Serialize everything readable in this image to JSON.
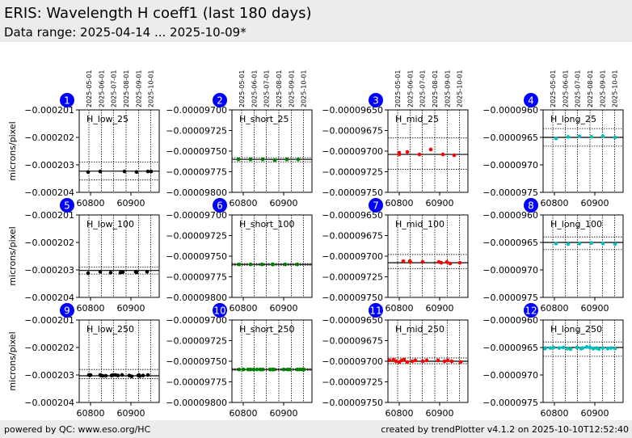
{
  "header": {
    "title": "ERIS: Wavelength H coeff1 (last 180 days)",
    "subtitle": "Data range: 2025-04-14 ... 2025-10-09*"
  },
  "footer": {
    "left": "powered by QC: www.eso.org/HC",
    "right": "created by trendPlotter v4.1.2 on 2025-10-10T12:52:40"
  },
  "chart_data": {
    "type": "scatter",
    "ylabel": "microns/pixel",
    "xlim": [
      60772,
      60970
    ],
    "xticks": [
      60800,
      60900
    ],
    "date_ticks": [
      {
        "label": "2025-05-01",
        "mjd": 60796
      },
      {
        "label": "2025-06-01",
        "mjd": 60827
      },
      {
        "label": "2025-07-01",
        "mjd": 60857
      },
      {
        "label": "2025-08-01",
        "mjd": 60888
      },
      {
        "label": "2025-09-01",
        "mjd": 60919
      },
      {
        "label": "2025-10-01",
        "mjd": 60949
      }
    ],
    "colors": {
      "low": "#000000",
      "short": "#008000",
      "mid": "#ff0000",
      "long": "#00bfbf",
      "badge": "#0000ff"
    },
    "panels": [
      {
        "num": "1",
        "label": "H_low_25",
        "color": "low",
        "ylim": [
          -0.000204,
          -0.000201
        ],
        "yticks": [
          -0.000201,
          -0.000202,
          -0.000203,
          -0.000204
        ],
        "yticklabels": [
          "−0.000201",
          "−0.000202",
          "−0.000203",
          "−0.000204"
        ],
        "mean": -0.00020323,
        "limits": [
          -0.0002029,
          -0.00020355
        ],
        "points": [
          [
            60794,
            -0.00020326
          ],
          [
            60824,
            -0.00020324
          ],
          [
            60884,
            -0.00020324
          ],
          [
            60914,
            -0.00020326
          ],
          [
            60942,
            -0.00020324
          ],
          [
            60950,
            -0.00020324
          ]
        ]
      },
      {
        "num": "2",
        "label": "H_short_25",
        "color": "short",
        "ylim": [
          -9.8e-05,
          -9.7e-05
        ],
        "yticks": [
          -9.7e-05,
          -9.725e-05,
          -9.75e-05,
          -9.775e-05,
          -9.8e-05
        ],
        "yticklabels": [
          "−0.00009700",
          "−0.00009725",
          "−0.00009750",
          "−0.00009775",
          "−0.00009800"
        ],
        "mean": -9.76e-05,
        "limits": [
          -9.758e-05,
          -9.763e-05
        ],
        "points": [
          [
            60788,
            -9.76e-05
          ],
          [
            60818,
            -9.76e-05
          ],
          [
            60848,
            -9.76e-05
          ],
          [
            60878,
            -9.761e-05
          ],
          [
            60908,
            -9.76e-05
          ],
          [
            60936,
            -9.76e-05
          ]
        ]
      },
      {
        "num": "3",
        "label": "H_mid_25",
        "color": "mid",
        "ylim": [
          -9.75e-05,
          -9.65e-05
        ],
        "yticks": [
          -9.65e-05,
          -9.675e-05,
          -9.7e-05,
          -9.725e-05,
          -9.75e-05
        ],
        "yticklabels": [
          "−0.00009650",
          "−0.00009675",
          "−0.00009700",
          "−0.00009725",
          "−0.00009750"
        ],
        "mean": -9.704e-05,
        "limits": [
          -9.684e-05,
          -9.722e-05
        ],
        "points": [
          [
            60800,
            -9.702e-05
          ],
          [
            60800,
            -9.704e-05
          ],
          [
            60820,
            -9.701e-05
          ],
          [
            60850,
            -9.704e-05
          ],
          [
            60878,
            -9.698e-05
          ],
          [
            60908,
            -9.704e-05
          ],
          [
            60936,
            -9.705e-05
          ]
        ]
      },
      {
        "num": "4",
        "label": "H_long_25",
        "color": "long",
        "ylim": [
          -9.75e-05,
          -9.6e-05
        ],
        "yticks": [
          -9.6e-05,
          -9.65e-05,
          -9.7e-05,
          -9.75e-05
        ],
        "yticklabels": [
          "−0.0000960",
          "−0.0000965",
          "−0.0000970",
          "−0.0000975"
        ],
        "mean": -9.65e-05,
        "limits": [
          -9.634e-05,
          -9.666e-05
        ],
        "points": [
          [
            60804,
            -9.652e-05
          ],
          [
            60834,
            -9.649e-05
          ],
          [
            60862,
            -9.648e-05
          ],
          [
            60892,
            -9.649e-05
          ],
          [
            60920,
            -9.648e-05
          ],
          [
            60950,
            -9.65e-05
          ]
        ]
      },
      {
        "num": "5",
        "label": "H_low_100",
        "color": "low",
        "ylim": [
          -0.000204,
          -0.000201
        ],
        "yticks": [
          -0.000201,
          -0.000202,
          -0.000203,
          -0.000204
        ],
        "yticklabels": [
          "−0.000201",
          "−0.000202",
          "−0.000203",
          "−0.000204"
        ],
        "mean": -0.00020302,
        "limits": [
          -0.0002029,
          -0.00020315
        ],
        "points": [
          [
            60794,
            -0.00020312
          ],
          [
            60824,
            -0.00020307
          ],
          [
            60850,
            -0.0002031
          ],
          [
            60874,
            -0.0002031
          ],
          [
            60880,
            -0.00020308
          ],
          [
            60912,
            -0.00020307
          ],
          [
            60914,
            -0.00020309
          ],
          [
            60940,
            -0.00020307
          ]
        ]
      },
      {
        "num": "6",
        "label": "H_short_100",
        "color": "short",
        "ylim": [
          -9.8e-05,
          -9.7e-05
        ],
        "yticks": [
          -9.7e-05,
          -9.725e-05,
          -9.75e-05,
          -9.775e-05,
          -9.8e-05
        ],
        "yticklabels": [
          "−0.00009700",
          "−0.00009725",
          "−0.00009750",
          "−0.00009775",
          "−0.00009800"
        ],
        "mean": -9.76e-05,
        "limits": [
          -9.759e-05,
          -9.761e-05
        ],
        "points": [
          [
            60790,
            -9.76e-05
          ],
          [
            60818,
            -9.76e-05
          ],
          [
            60846,
            -9.76e-05
          ],
          [
            60872,
            -9.76e-05
          ],
          [
            60874,
            -9.76e-05
          ],
          [
            60904,
            -9.76e-05
          ],
          [
            60934,
            -9.76e-05
          ]
        ]
      },
      {
        "num": "7",
        "label": "H_mid_100",
        "color": "mid",
        "ylim": [
          -9.75e-05,
          -9.65e-05
        ],
        "yticks": [
          -9.65e-05,
          -9.675e-05,
          -9.7e-05,
          -9.725e-05,
          -9.75e-05
        ],
        "yticklabels": [
          "−0.00009650",
          "−0.00009675",
          "−0.00009700",
          "−0.00009725",
          "−0.00009750"
        ],
        "mean": -9.708e-05,
        "limits": [
          -9.698e-05,
          -9.715e-05
        ],
        "points": [
          [
            60810,
            -9.706e-05
          ],
          [
            60826,
            -9.706e-05
          ],
          [
            60828,
            -9.707e-05
          ],
          [
            60858,
            -9.707e-05
          ],
          [
            60898,
            -9.707e-05
          ],
          [
            60904,
            -9.708e-05
          ],
          [
            60918,
            -9.707e-05
          ],
          [
            60926,
            -9.709e-05
          ],
          [
            60950,
            -9.708e-05
          ]
        ]
      },
      {
        "num": "8",
        "label": "H_long_100",
        "color": "long",
        "ylim": [
          -9.75e-05,
          -9.6e-05
        ],
        "yticks": [
          -9.6e-05,
          -9.65e-05,
          -9.7e-05,
          -9.75e-05
        ],
        "yticklabels": [
          "−0.0000960",
          "−0.0000965",
          "−0.0000970",
          "−0.0000975"
        ],
        "mean": -9.65e-05,
        "limits": [
          -9.64e-05,
          -9.663e-05
        ],
        "points": [
          [
            60804,
            -9.652e-05
          ],
          [
            60834,
            -9.653e-05
          ],
          [
            60862,
            -9.652e-05
          ],
          [
            60892,
            -9.651e-05
          ],
          [
            60920,
            -9.652e-05
          ],
          [
            60950,
            -9.653e-05
          ]
        ]
      },
      {
        "num": "9",
        "label": "H_low_250",
        "color": "low",
        "ylim": [
          -0.000204,
          -0.000201
        ],
        "yticks": [
          -0.000201,
          -0.000202,
          -0.000203,
          -0.000204
        ],
        "yticklabels": [
          "−0.000201",
          "−0.000202",
          "−0.000203",
          "−0.000204"
        ],
        "mean": -0.00020303,
        "limits": [
          -0.0002028,
          -0.00020313
        ],
        "points": [
          [
            60796,
            -0.000203
          ],
          [
            60798,
            -0.00020302
          ],
          [
            60800,
            -0.000203
          ],
          [
            60824,
            -0.000203
          ],
          [
            60826,
            -0.00020302
          ],
          [
            60830,
            -0.00020303
          ],
          [
            60838,
            -0.00020303
          ],
          [
            60852,
            -0.00020302
          ],
          [
            60856,
            -0.000203
          ],
          [
            60862,
            -0.000203
          ],
          [
            60868,
            -0.00020302
          ],
          [
            60878,
            -0.000203
          ],
          [
            60896,
            -0.00020302
          ],
          [
            60902,
            -0.00020305
          ],
          [
            60918,
            -0.00020302
          ],
          [
            60920,
            -0.000203
          ],
          [
            60922,
            -0.00020304
          ],
          [
            60930,
            -0.00020302
          ],
          [
            60942,
            -0.000203
          ]
        ]
      },
      {
        "num": "10",
        "label": "H_short_250",
        "color": "short",
        "ylim": [
          -9.8e-05,
          -9.7e-05
        ],
        "yticks": [
          -9.7e-05,
          -9.725e-05,
          -9.75e-05,
          -9.775e-05,
          -9.8e-05
        ],
        "yticklabels": [
          "−0.00009700",
          "−0.00009725",
          "−0.00009750",
          "−0.00009775",
          "−0.00009800"
        ],
        "mean": -9.76e-05,
        "limits": [
          -9.759e-05,
          -9.761e-05
        ],
        "points": [
          [
            60790,
            -9.76e-05
          ],
          [
            60800,
            -9.76e-05
          ],
          [
            60812,
            -9.76e-05
          ],
          [
            60818,
            -9.76e-05
          ],
          [
            60826,
            -9.76e-05
          ],
          [
            60834,
            -9.76e-05
          ],
          [
            60842,
            -9.76e-05
          ],
          [
            60848,
            -9.76e-05
          ],
          [
            60866,
            -9.76e-05
          ],
          [
            60872,
            -9.76e-05
          ],
          [
            60876,
            -9.76e-05
          ],
          [
            60900,
            -9.76e-05
          ],
          [
            60910,
            -9.76e-05
          ],
          [
            60916,
            -9.76e-05
          ],
          [
            60934,
            -9.76e-05
          ],
          [
            60940,
            -9.76e-05
          ],
          [
            60946,
            -9.76e-05
          ],
          [
            60950,
            -9.76e-05
          ]
        ]
      },
      {
        "num": "11",
        "label": "H_mid_250",
        "color": "mid",
        "ylim": [
          -9.75e-05,
          -9.65e-05
        ],
        "yticks": [
          -9.65e-05,
          -9.675e-05,
          -9.7e-05,
          -9.725e-05,
          -9.75e-05
        ],
        "yticklabels": [
          "−0.00009650",
          "−0.00009675",
          "−0.00009700",
          "−0.00009725",
          "−0.00009750"
        ],
        "mean": -9.7e-05,
        "limits": [
          -9.696e-05,
          -9.703e-05
        ],
        "points": [
          [
            60776,
            -9.699e-05
          ],
          [
            60786,
            -9.698e-05
          ],
          [
            60792,
            -9.7e-05
          ],
          [
            60800,
            -9.701e-05
          ],
          [
            60806,
            -9.699e-05
          ],
          [
            60812,
            -9.698e-05
          ],
          [
            60820,
            -9.701e-05
          ],
          [
            60832,
            -9.7e-05
          ],
          [
            60840,
            -9.699e-05
          ],
          [
            60858,
            -9.7e-05
          ],
          [
            60868,
            -9.699e-05
          ],
          [
            60896,
            -9.699e-05
          ],
          [
            60912,
            -9.7e-05
          ],
          [
            60920,
            -9.699e-05
          ],
          [
            60930,
            -9.7e-05
          ],
          [
            60952,
            -9.701e-05
          ]
        ]
      },
      {
        "num": "12",
        "label": "H_long_250",
        "color": "long",
        "ylim": [
          -9.75e-05,
          -9.6e-05
        ],
        "yticks": [
          -9.6e-05,
          -9.65e-05,
          -9.7e-05,
          -9.75e-05
        ],
        "yticklabels": [
          "−0.0000960",
          "−0.0000965",
          "−0.0000970",
          "−0.0000975"
        ],
        "mean": -9.65e-05,
        "limits": [
          -9.64e-05,
          -9.666e-05
        ],
        "points": [
          [
            60776,
            -9.652e-05
          ],
          [
            60778,
            -9.651e-05
          ],
          [
            60790,
            -9.651e-05
          ],
          [
            60798,
            -9.65e-05
          ],
          [
            60812,
            -9.651e-05
          ],
          [
            60822,
            -9.65e-05
          ],
          [
            60832,
            -9.652e-05
          ],
          [
            60840,
            -9.653e-05
          ],
          [
            60856,
            -9.65e-05
          ],
          [
            60866,
            -9.652e-05
          ],
          [
            60870,
            -9.651e-05
          ],
          [
            60880,
            -9.649e-05
          ],
          [
            60888,
            -9.65e-05
          ],
          [
            60896,
            -9.652e-05
          ],
          [
            60904,
            -9.651e-05
          ],
          [
            60910,
            -9.653e-05
          ],
          [
            60920,
            -9.651e-05
          ],
          [
            60932,
            -9.652e-05
          ],
          [
            60940,
            -9.651e-05
          ],
          [
            60950,
            -9.652e-05
          ]
        ]
      }
    ]
  }
}
